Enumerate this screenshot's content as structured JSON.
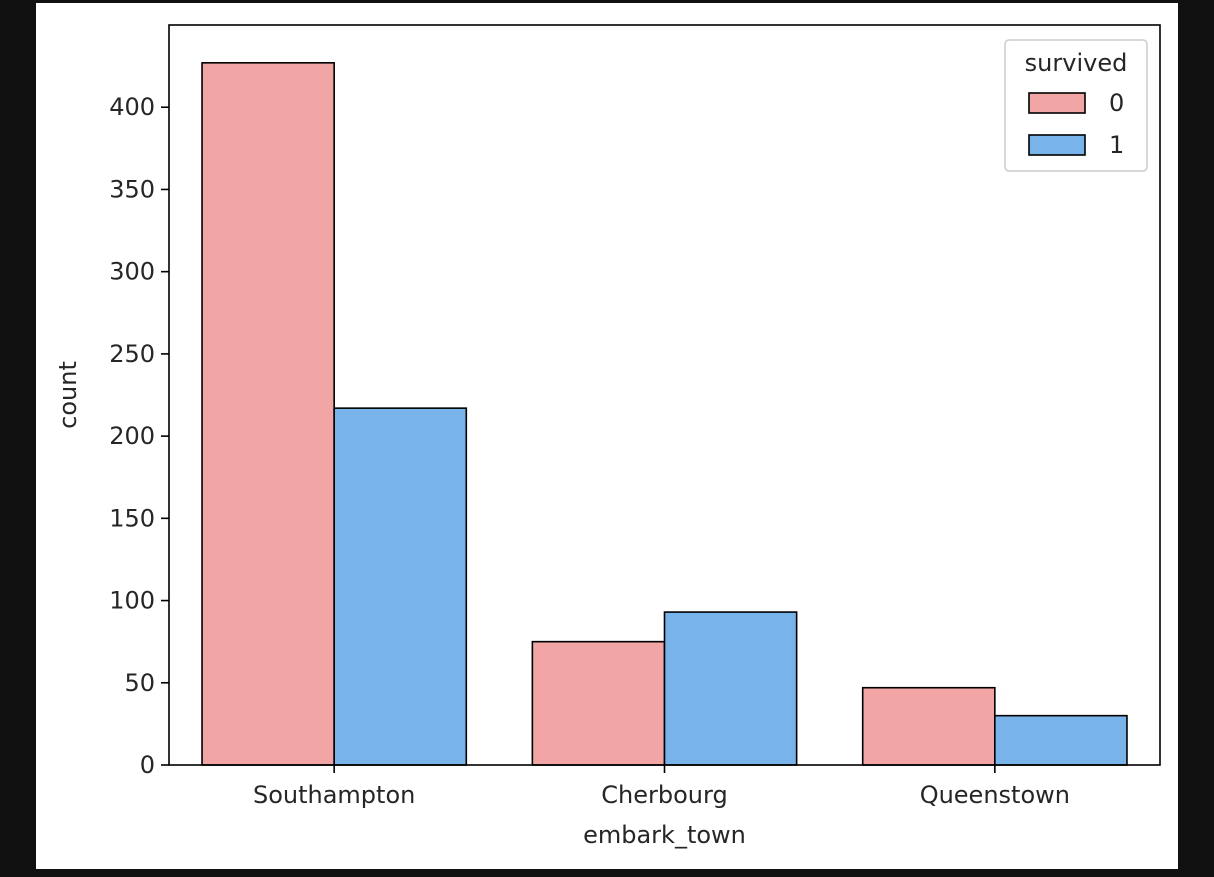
{
  "chart_data": {
    "type": "bar",
    "xlabel": "embark_town",
    "ylabel": "count",
    "categories": [
      "Southampton",
      "Cherbourg",
      "Queenstown"
    ],
    "ylim": [
      0,
      450
    ],
    "yticks": [
      0,
      50,
      100,
      150,
      200,
      250,
      300,
      350,
      400
    ],
    "grid": false,
    "legend": {
      "title": "survived",
      "position": "top-right"
    },
    "series": [
      {
        "name": "0",
        "color": "#f1a5a5",
        "values": [
          427,
          75,
          47
        ]
      },
      {
        "name": "1",
        "color": "#78b3ea",
        "values": [
          217,
          93,
          30
        ]
      }
    ]
  }
}
